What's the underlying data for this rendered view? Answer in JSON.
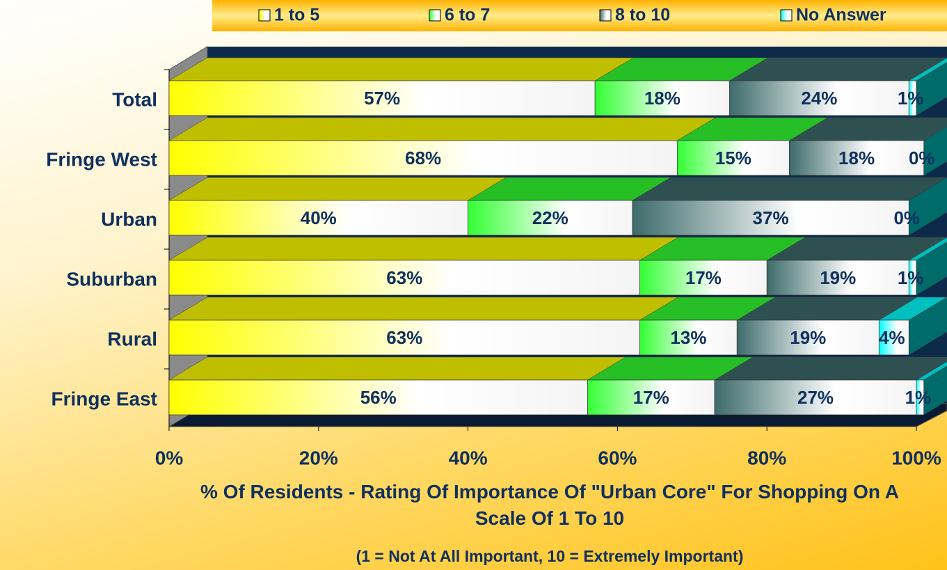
{
  "chart_data": {
    "type": "stacked-bar-3d",
    "xlabel": "% Of Residents - Rating Of Importance Of \"Urban Core\" For Shopping On A Scale Of 1 To 10",
    "subtitle": "(1 = Not At All Important, 10 = Extremely Important)",
    "categories": [
      "Total",
      "Fringe West",
      "Urban",
      "Suburban",
      "Rural",
      "Fringe East"
    ],
    "series": [
      {
        "name": "1 to 5",
        "color": "#ffff00",
        "values": [
          57,
          68,
          40,
          63,
          63,
          56
        ],
        "value_labels": [
          "57%",
          "68%",
          "40%",
          "63%",
          "63%",
          "56%"
        ]
      },
      {
        "name": "6 to 7",
        "color": "#33ff33",
        "values": [
          18,
          15,
          22,
          17,
          13,
          17
        ],
        "value_labels": [
          "18%",
          "15%",
          "22%",
          "17%",
          "13%",
          "17%"
        ]
      },
      {
        "name": "8 to 10",
        "color": "#3d6b6b",
        "values": [
          24,
          18,
          37,
          19,
          19,
          27
        ],
        "value_labels": [
          "24%",
          "18%",
          "37%",
          "19%",
          "19%",
          "27%"
        ]
      },
      {
        "name": "No Answer",
        "color": "#00ffff",
        "values": [
          1,
          0,
          0,
          1,
          4,
          1
        ],
        "value_labels": [
          "1%",
          "0%",
          "0%",
          "1%",
          "4%",
          "1%"
        ]
      }
    ],
    "xlim": [
      0,
      100
    ],
    "xticks": [
      {
        "value": 0,
        "label": "0%"
      },
      {
        "value": 20,
        "label": "20%"
      },
      {
        "value": 40,
        "label": "40%"
      },
      {
        "value": 60,
        "label": "60%"
      },
      {
        "value": 80,
        "label": "80%"
      },
      {
        "value": 100,
        "label": "100%"
      }
    ],
    "legend": "top"
  }
}
